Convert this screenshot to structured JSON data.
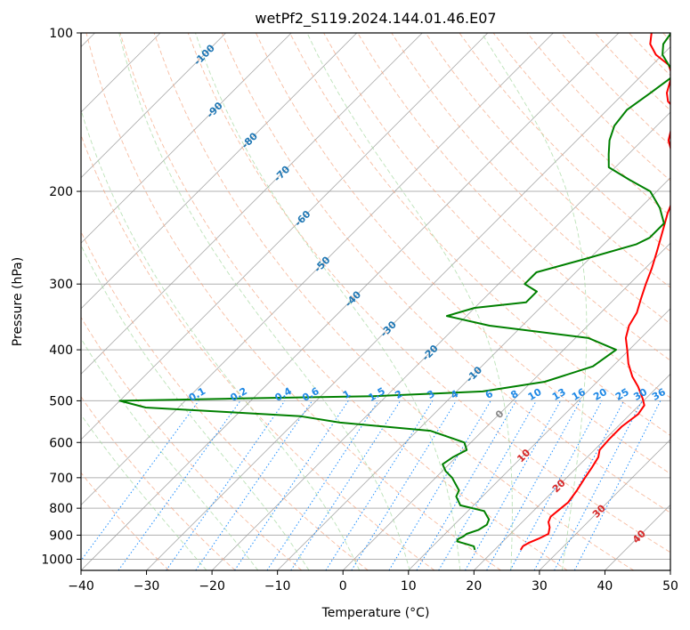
{
  "chart_data": {
    "type": "line",
    "title": "wetPf2_S119.2024.144.01.46.E07",
    "xlabel": "Temperature (°C)",
    "ylabel": "Pressure (hPa)",
    "xlim": [
      -40,
      50
    ],
    "ylim": [
      1050,
      100
    ],
    "y_scale": "log",
    "x_ticks": [
      "−40",
      "−30",
      "−20",
      "−10",
      "0",
      "10",
      "20",
      "30",
      "40",
      "50"
    ],
    "y_ticks": [
      100,
      200,
      300,
      400,
      500,
      600,
      700,
      800,
      900,
      1000
    ],
    "grid": true,
    "skew": true,
    "isotherm_labels": [
      "-100",
      "-90",
      "-80",
      "-70",
      "-60",
      "-50",
      "-40",
      "-30",
      "-20",
      "-10",
      "0",
      "10",
      "20",
      "30",
      "40"
    ],
    "mixing_ratio_labels": [
      "0.1",
      "0.2",
      "0.4",
      "0.6",
      "1",
      "1.5",
      "2",
      "3",
      "4",
      "6",
      "8",
      "10",
      "13",
      "16",
      "20",
      "25",
      "30",
      "36"
    ],
    "colors": {
      "temperature": "#ff0000",
      "dewpoint": "#008000",
      "isotherm": "#999999",
      "dry_adiabat": "#f4a582",
      "moist_adiabat": "#a6d8a0",
      "mixing_ratio": "#1f8fff",
      "isotherm_label_cold": "#1f77b4",
      "isotherm_label_warm": "#d62728"
    },
    "series": [
      {
        "key": "temperature",
        "points": [
          [
            24,
            960
          ],
          [
            23.8,
            945
          ],
          [
            24.2,
            930
          ],
          [
            25,
            915
          ],
          [
            25.8,
            895
          ],
          [
            25,
            870
          ],
          [
            24,
            850
          ],
          [
            23.5,
            830
          ],
          [
            23.7,
            810
          ],
          [
            24,
            780
          ],
          [
            23.5,
            740
          ],
          [
            22.8,
            700
          ],
          [
            22.3,
            670
          ],
          [
            21.7,
            640
          ],
          [
            20.8,
            620
          ],
          [
            20.6,
            590
          ],
          [
            20.6,
            560
          ],
          [
            21.2,
            530
          ],
          [
            20.8,
            510
          ],
          [
            19.5,
            495
          ],
          [
            17,
            470
          ],
          [
            14.6,
            450
          ],
          [
            12,
            425
          ],
          [
            9.7,
            400
          ],
          [
            7.7,
            380
          ],
          [
            6.3,
            360
          ],
          [
            5.5,
            340
          ],
          [
            4,
            320
          ],
          [
            2.5,
            300
          ],
          [
            1,
            280
          ],
          [
            -0.8,
            260
          ],
          [
            -2.8,
            240
          ],
          [
            -5,
            220
          ],
          [
            -7,
            200
          ],
          [
            -9,
            190
          ],
          [
            -11,
            180
          ],
          [
            -13.3,
            170
          ],
          [
            -16,
            160
          ],
          [
            -17.7,
            150
          ],
          [
            -19.5,
            140
          ],
          [
            -22,
            135
          ],
          [
            -23.5,
            130
          ],
          [
            -25.5,
            120
          ],
          [
            -27.5,
            115
          ],
          [
            -31,
            110
          ],
          [
            -33.5,
            105
          ],
          [
            -35,
            100
          ]
        ]
      },
      {
        "key": "dewpoint",
        "points": [
          [
            17,
            960
          ],
          [
            16.3,
            945
          ],
          [
            14.7,
            935
          ],
          [
            13,
            925
          ],
          [
            12.8,
            915
          ],
          [
            13.2,
            905
          ],
          [
            13.3,
            895
          ],
          [
            14.5,
            880
          ],
          [
            15,
            860
          ],
          [
            14.5,
            840
          ],
          [
            12.5,
            810
          ],
          [
            8,
            790
          ],
          [
            6,
            760
          ],
          [
            5.5,
            740
          ],
          [
            2.5,
            700
          ],
          [
            0.5,
            680
          ],
          [
            -1,
            660
          ],
          [
            -0.5,
            640
          ],
          [
            0.5,
            620
          ],
          [
            -1,
            600
          ],
          [
            -8,
            570
          ],
          [
            -23,
            550
          ],
          [
            -30,
            535
          ],
          [
            -42,
            525
          ],
          [
            -55,
            515
          ],
          [
            -60,
            500
          ],
          [
            -42,
            495
          ],
          [
            -22,
            490
          ],
          [
            -6,
            480
          ],
          [
            2,
            460
          ],
          [
            7,
            430
          ],
          [
            8,
            400
          ],
          [
            2,
            380
          ],
          [
            -15,
            360
          ],
          [
            -23,
            345
          ],
          [
            -20,
            333
          ],
          [
            -13,
            325
          ],
          [
            -13,
            310
          ],
          [
            -16,
            300
          ],
          [
            -16,
            285
          ],
          [
            -11,
            270
          ],
          [
            -5,
            252
          ],
          [
            -4,
            245
          ],
          [
            -4,
            230
          ],
          [
            -7,
            215
          ],
          [
            -11,
            200
          ],
          [
            -16,
            190
          ],
          [
            -21,
            180
          ],
          [
            -23,
            170
          ],
          [
            -25,
            160
          ],
          [
            -26.5,
            150
          ],
          [
            -27,
            140
          ],
          [
            -26,
            130
          ],
          [
            -25,
            120
          ],
          [
            -27.5,
            115
          ],
          [
            -30,
            110
          ],
          [
            -31.5,
            105
          ],
          [
            -32,
            100
          ]
        ]
      }
    ]
  }
}
